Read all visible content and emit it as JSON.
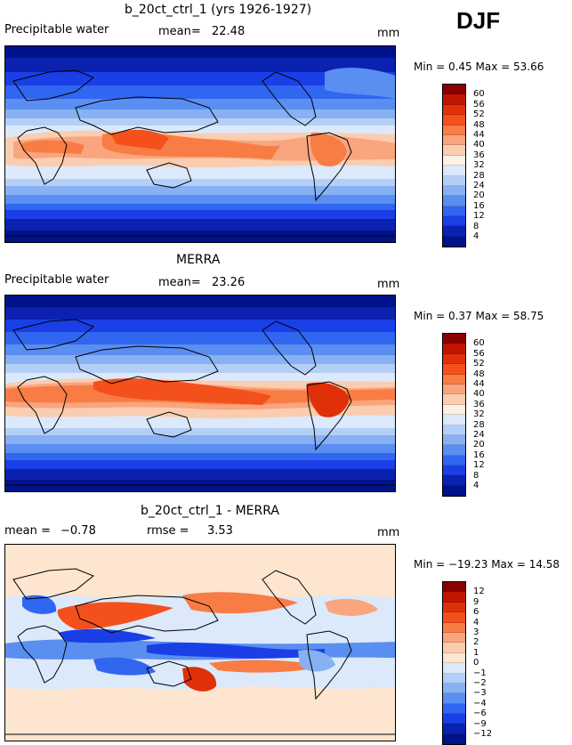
{
  "season": "DJF",
  "units": "mm",
  "panels": [
    {
      "id": "model",
      "title": "b_20ct_ctrl_1 (yrs 1926-1927)",
      "variable": "Precipitable water",
      "stat1_label": "mean=",
      "stat1_value": "22.48",
      "minmax": "Min =    0.45  Max =   53.66"
    },
    {
      "id": "obs",
      "title": "MERRA",
      "variable": "Precipitable water",
      "stat1_label": "mean=",
      "stat1_value": "23.26",
      "minmax": "Min =    0.37  Max =   58.75"
    },
    {
      "id": "diff",
      "title": "b_20ct_ctrl_1 - MERRA",
      "stat1_label": "mean =",
      "stat1_value": "−0.78",
      "stat2_label": "rmse =",
      "stat2_value": "3.53",
      "minmax": "Min = −19.23  Max =   14.58"
    }
  ],
  "colorbars": {
    "absolute": {
      "levels": [
        "60",
        "56",
        "52",
        "48",
        "44",
        "40",
        "36",
        "32",
        "28",
        "24",
        "20",
        "16",
        "12",
        "8",
        "4"
      ],
      "colors": [
        "#8b0000",
        "#c01500",
        "#e0300a",
        "#f4501c",
        "#f77d45",
        "#f9a57e",
        "#fbcdb0",
        "#fdf0e4",
        "#dbe9fb",
        "#b4cff7",
        "#87b1f2",
        "#5a8ef0",
        "#3166f0",
        "#1a3fe6",
        "#0b22b0",
        "#00128a"
      ]
    },
    "difference": {
      "levels": [
        "12",
        "9",
        "6",
        "4",
        "3",
        "2",
        "1",
        "0",
        "−1",
        "−2",
        "−3",
        "−4",
        "−6",
        "−9",
        "−12"
      ],
      "colors": [
        "#8b0000",
        "#c01500",
        "#e0300a",
        "#f4501c",
        "#f77d45",
        "#f9a57e",
        "#fbcdb0",
        "#fde5d0",
        "#dbe9fb",
        "#b4cff7",
        "#87b1f2",
        "#5a8ef0",
        "#3166f0",
        "#1a3fe6",
        "#0b22b0",
        "#00128a"
      ]
    }
  },
  "chart_data": [
    {
      "type": "heatmap",
      "title": "b_20ct_ctrl_1 (yrs 1926-1927)",
      "variable": "Precipitable water",
      "season": "DJF",
      "units": "mm",
      "mean": 22.48,
      "min": 0.45,
      "max": 53.66,
      "contour_levels": [
        4,
        8,
        12,
        16,
        20,
        24,
        28,
        32,
        36,
        40,
        44,
        48,
        52,
        56,
        60
      ]
    },
    {
      "type": "heatmap",
      "title": "MERRA",
      "variable": "Precipitable water",
      "season": "DJF",
      "units": "mm",
      "mean": 23.26,
      "min": 0.37,
      "max": 58.75,
      "contour_levels": [
        4,
        8,
        12,
        16,
        20,
        24,
        28,
        32,
        36,
        40,
        44,
        48,
        52,
        56,
        60
      ]
    },
    {
      "type": "heatmap",
      "title": "b_20ct_ctrl_1 - MERRA",
      "season": "DJF",
      "units": "mm",
      "mean": -0.78,
      "rmse": 3.53,
      "min": -19.23,
      "max": 14.58,
      "contour_levels": [
        -12,
        -9,
        -6,
        -4,
        -3,
        -2,
        -1,
        0,
        1,
        2,
        3,
        4,
        6,
        9,
        12
      ]
    }
  ]
}
